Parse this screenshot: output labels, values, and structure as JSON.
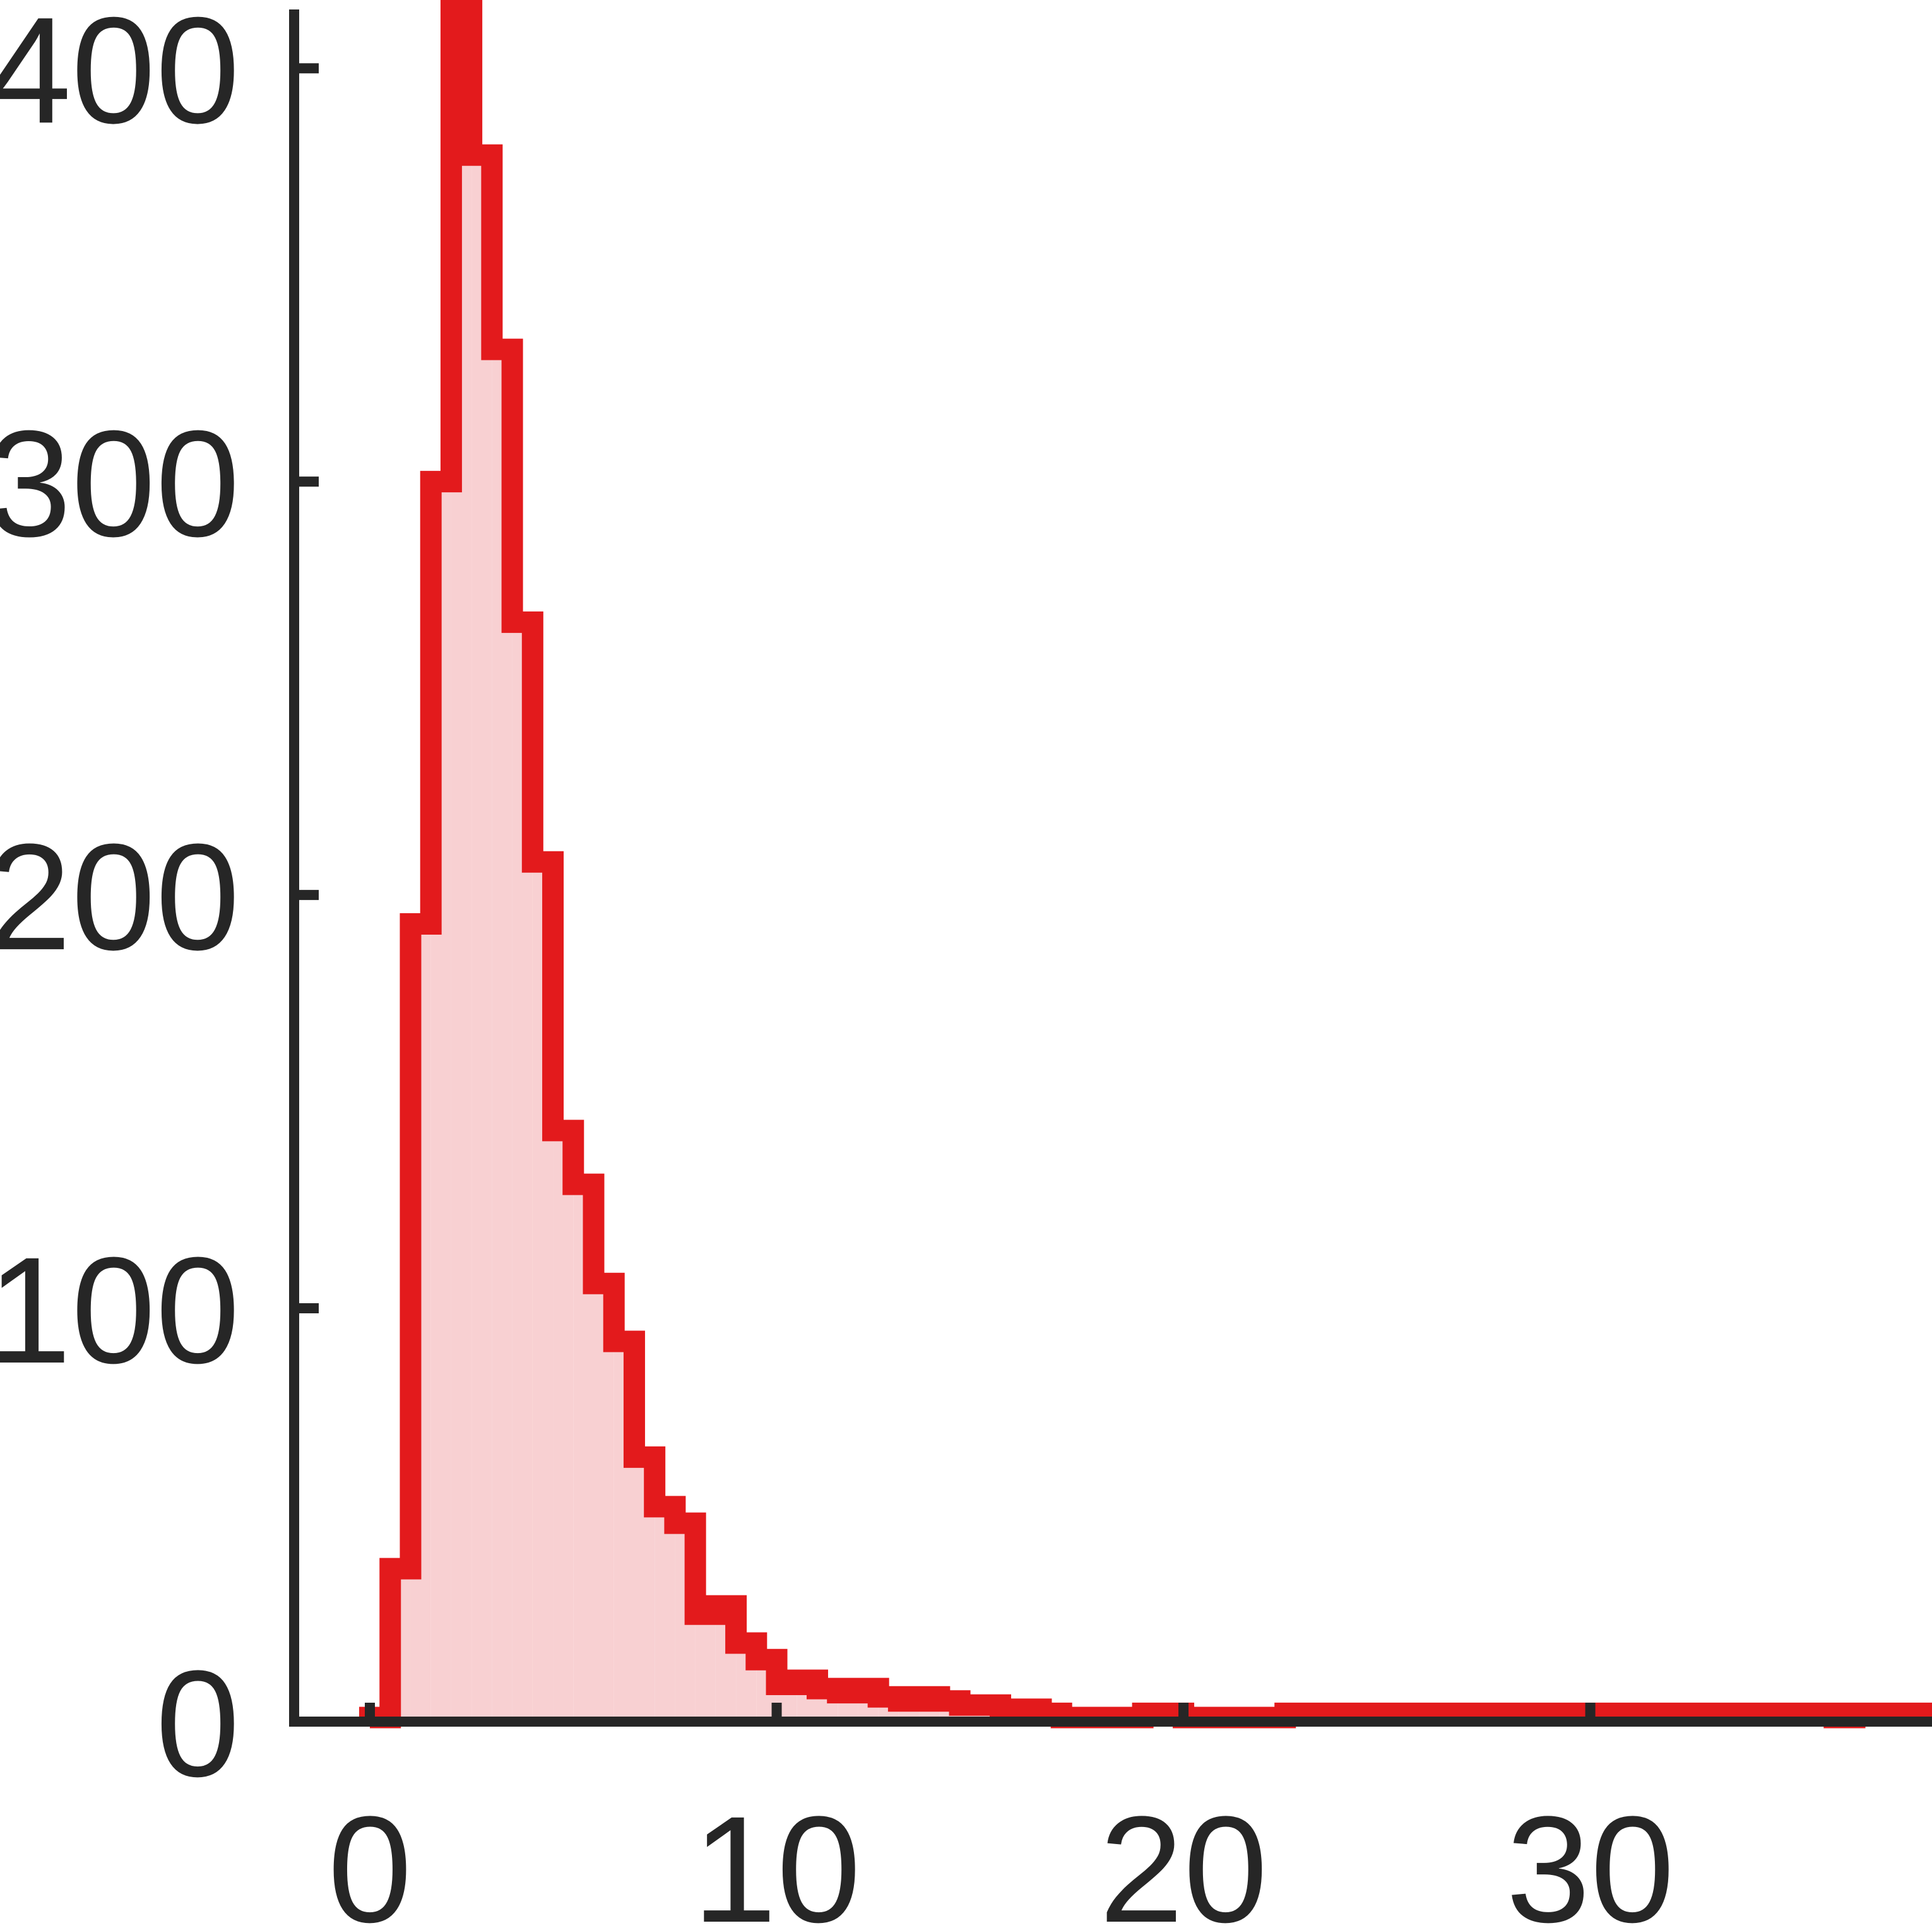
{
  "chart_data": {
    "type": "bar",
    "style": "step-histogram",
    "title": "",
    "xlabel": "",
    "ylabel": "",
    "xlim": [
      -1.8,
      38.4
    ],
    "ylim": [
      0,
      415
    ],
    "grid": false,
    "x_ticks": [
      {
        "value": 0,
        "label": "0"
      },
      {
        "value": 10,
        "label": "10"
      },
      {
        "value": 20,
        "label": "20"
      },
      {
        "value": 30,
        "label": "30"
      }
    ],
    "y_ticks": [
      {
        "value": 0,
        "label": "0"
      },
      {
        "value": 100,
        "label": "100"
      },
      {
        "value": 200,
        "label": "200"
      },
      {
        "value": 300,
        "label": "300"
      },
      {
        "value": 400,
        "label": "400"
      }
    ],
    "series": [
      {
        "bin_width": 0.5,
        "x_start": 0,
        "values": [
          1,
          37,
          193,
          300,
          416,
          379,
          332,
          266,
          208,
          143,
          130,
          106,
          92,
          64,
          52,
          48,
          26,
          28,
          19,
          15,
          9,
          10,
          8,
          7,
          8,
          6,
          5,
          6,
          5,
          4,
          4,
          3,
          3,
          2,
          1,
          1,
          1,
          1,
          2,
          2,
          1,
          1,
          1,
          1,
          1,
          2,
          2,
          2,
          2,
          2,
          2,
          2,
          2,
          2,
          2,
          2,
          2,
          2,
          2,
          2,
          2,
          2,
          2,
          2,
          2,
          2,
          2,
          2,
          2,
          2,
          2,
          2,
          1,
          2,
          2,
          2,
          2
        ]
      }
    ],
    "colors": {
      "line": "#e31a1c",
      "fill": "#f8d0d2",
      "axis": "#262626"
    }
  }
}
